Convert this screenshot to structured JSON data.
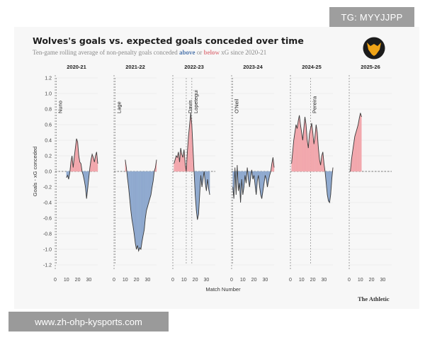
{
  "watermark_top": "TG: MYYJJPP",
  "watermark_bottom": "www.zh-ohp-kysports.com",
  "source_label": "The Athletic",
  "logo_name": "wolves-crest",
  "colors": {
    "above": "#4f77ad",
    "above_fill": "#8fa9cf",
    "below": "#e0848b",
    "below_fill": "#f2a7ad",
    "line": "#3a3a3a",
    "logo_bg": "#1c1c1c",
    "logo_fg": "#f0a417"
  },
  "chart_data": {
    "type": "area",
    "title": "Wolves's goals vs. expected goals conceded over time",
    "subtitle": {
      "prefix": "Ten-game rolling average of non-penalty goals conceded ",
      "above_word": "above",
      "middle": " or ",
      "below_word": "below",
      "suffix": " xG since 2020-21"
    },
    "xlabel": "Match Number",
    "ylabel": "Goals - xG conceded",
    "ylim": [
      1.2,
      -1.2
    ],
    "yticks": [
      "-1.2",
      "-1.0",
      "-0.8",
      "-0.6",
      "-0.4",
      "-0.2",
      "0.0",
      "0.2",
      "0.4",
      "0.6",
      "0.8",
      "1.0",
      "1.2"
    ],
    "xticks": [
      "0",
      "10",
      "20",
      "30"
    ],
    "xlim": [
      0,
      38
    ],
    "seasons": [
      {
        "name": "2020-21",
        "managers": [
          {
            "name": "Nuno",
            "match": 1
          }
        ],
        "x": [
          10,
          11,
          12,
          13,
          14,
          15,
          16,
          17,
          18,
          19,
          20,
          21,
          22,
          23,
          24,
          25,
          26,
          27,
          28,
          29,
          30,
          31,
          32,
          33,
          34,
          35,
          36,
          37,
          38
        ],
        "y": [
          -0.08,
          -0.05,
          -0.1,
          -0.02,
          0.12,
          0.2,
          0.05,
          0.18,
          0.3,
          0.42,
          0.38,
          0.2,
          0.12,
          0.1,
          0.0,
          -0.05,
          -0.12,
          -0.2,
          -0.35,
          -0.22,
          -0.08,
          0.05,
          0.15,
          0.22,
          0.18,
          0.12,
          0.2,
          0.25,
          0.1
        ]
      },
      {
        "name": "2021-22",
        "managers": [
          {
            "name": "Lage",
            "match": 1
          }
        ],
        "x": [
          10,
          11,
          12,
          13,
          14,
          15,
          16,
          17,
          18,
          19,
          20,
          21,
          22,
          23,
          24,
          25,
          26,
          27,
          28,
          29,
          30,
          31,
          32,
          33,
          34,
          35,
          36,
          37,
          38
        ],
        "y": [
          0.15,
          0.05,
          -0.08,
          -0.2,
          -0.35,
          -0.5,
          -0.62,
          -0.7,
          -0.8,
          -0.92,
          -1.0,
          -0.95,
          -1.02,
          -0.98,
          -1.0,
          -0.9,
          -0.82,
          -0.75,
          -0.6,
          -0.5,
          -0.45,
          -0.4,
          -0.35,
          -0.3,
          -0.2,
          -0.12,
          0.0,
          0.05,
          0.15
        ]
      },
      {
        "name": "2022-23",
        "managers": [
          {
            "name": "Davis",
            "match": 12
          },
          {
            "name": "Lopetegui",
            "match": 17
          }
        ],
        "x": [
          1,
          2,
          3,
          4,
          5,
          6,
          7,
          8,
          9,
          10,
          11,
          12,
          13,
          14,
          15,
          16,
          17,
          18,
          19,
          20,
          21,
          22,
          23,
          24,
          25,
          26,
          27,
          28,
          29,
          30,
          31,
          32,
          33
        ],
        "y": [
          0.1,
          0.15,
          0.2,
          0.18,
          0.25,
          0.12,
          0.3,
          0.22,
          0.18,
          0.28,
          0.1,
          0.0,
          0.25,
          0.45,
          0.6,
          0.75,
          0.6,
          0.3,
          0.0,
          -0.3,
          -0.5,
          -0.62,
          -0.55,
          -0.3,
          -0.05,
          -0.2,
          -0.1,
          0.0,
          -0.15,
          -0.25,
          -0.1,
          -0.22,
          -0.3
        ]
      },
      {
        "name": "2023-24",
        "managers": [
          {
            "name": "O'Neil",
            "match": 1
          }
        ],
        "x": [
          1,
          2,
          3,
          4,
          5,
          6,
          7,
          8,
          9,
          10,
          11,
          12,
          13,
          14,
          15,
          16,
          17,
          18,
          19,
          20,
          21,
          22,
          23,
          24,
          25,
          26,
          27,
          28,
          29,
          30,
          31,
          32,
          33,
          34,
          35,
          36,
          37,
          38
        ],
        "y": [
          -0.2,
          -0.35,
          0.05,
          -0.3,
          0.08,
          -0.25,
          -0.15,
          -0.4,
          -0.1,
          -0.3,
          -0.2,
          -0.05,
          -0.15,
          0.05,
          -0.1,
          -0.2,
          -0.08,
          0.02,
          -0.1,
          -0.05,
          -0.18,
          -0.3,
          -0.12,
          -0.05,
          -0.2,
          -0.3,
          -0.35,
          -0.25,
          -0.15,
          -0.05,
          -0.1,
          -0.2,
          -0.12,
          -0.05,
          0.0,
          0.1,
          0.18,
          0.05
        ]
      },
      {
        "name": "2024-25",
        "managers": [
          {
            "name": "Pereira",
            "match": 18
          }
        ],
        "x": [
          1,
          2,
          3,
          4,
          5,
          6,
          7,
          8,
          9,
          10,
          11,
          12,
          13,
          14,
          15,
          16,
          17,
          18,
          19,
          20,
          21,
          22,
          23,
          24,
          25,
          26,
          27,
          28,
          29,
          30,
          31,
          32,
          33,
          34,
          35,
          36,
          37,
          38
        ],
        "y": [
          0.1,
          0.25,
          0.4,
          0.5,
          0.6,
          0.55,
          0.65,
          0.72,
          0.6,
          0.5,
          0.4,
          0.55,
          0.7,
          0.6,
          0.4,
          0.3,
          0.48,
          0.55,
          0.62,
          0.5,
          0.35,
          0.45,
          0.6,
          0.5,
          0.3,
          0.15,
          0.08,
          0.2,
          0.25,
          0.1,
          0.0,
          -0.15,
          -0.3,
          -0.38,
          -0.4,
          -0.3,
          -0.1,
          0.05
        ]
      },
      {
        "name": "2025-26",
        "managers": [],
        "x": [
          1,
          2,
          3,
          4,
          5,
          6,
          7,
          8,
          9,
          10,
          11
        ],
        "y": [
          0.0,
          0.15,
          0.25,
          0.35,
          0.45,
          0.5,
          0.55,
          0.6,
          0.68,
          0.75,
          0.7
        ]
      }
    ]
  }
}
